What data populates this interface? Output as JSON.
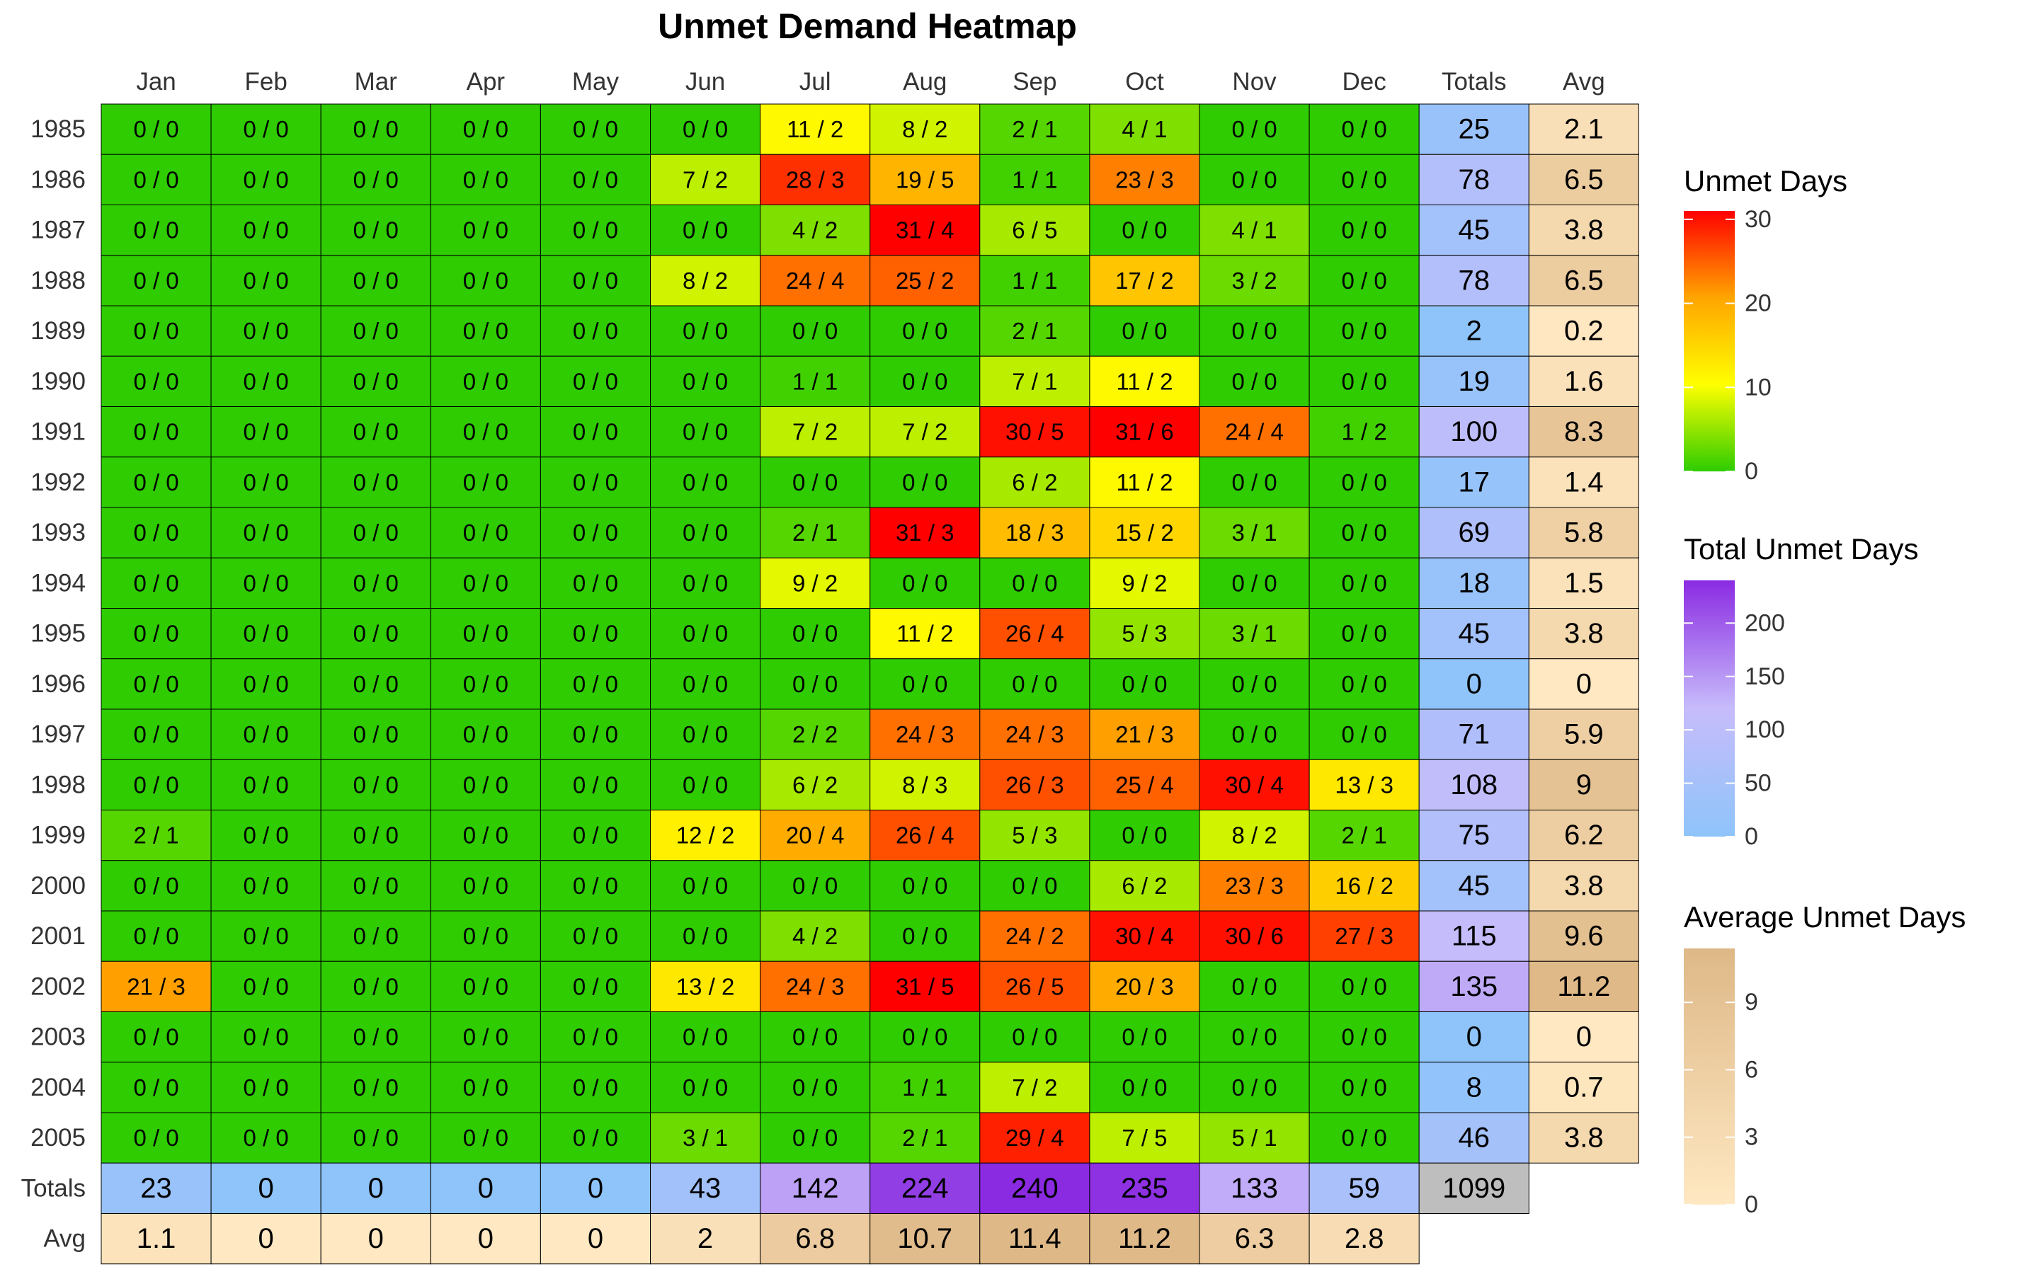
{
  "chart_data": {
    "type": "heatmap",
    "title": "Unmet Demand Heatmap",
    "columns": [
      "Jan",
      "Feb",
      "Mar",
      "Apr",
      "May",
      "Jun",
      "Jul",
      "Aug",
      "Sep",
      "Oct",
      "Nov",
      "Dec"
    ],
    "totals_label": "Totals",
    "avg_label": "Avg",
    "years": [
      "1985",
      "1986",
      "1987",
      "1988",
      "1989",
      "1990",
      "1991",
      "1992",
      "1993",
      "1994",
      "1995",
      "1996",
      "1997",
      "1998",
      "1999",
      "2000",
      "2001",
      "2002",
      "2003",
      "2004",
      "2005"
    ],
    "unmet_days": [
      [
        0,
        0,
        0,
        0,
        0,
        0,
        11,
        8,
        2,
        4,
        0,
        0
      ],
      [
        0,
        0,
        0,
        0,
        0,
        7,
        28,
        19,
        1,
        23,
        0,
        0
      ],
      [
        0,
        0,
        0,
        0,
        0,
        0,
        4,
        31,
        6,
        0,
        4,
        0
      ],
      [
        0,
        0,
        0,
        0,
        0,
        8,
        24,
        25,
        1,
        17,
        3,
        0
      ],
      [
        0,
        0,
        0,
        0,
        0,
        0,
        0,
        0,
        2,
        0,
        0,
        0
      ],
      [
        0,
        0,
        0,
        0,
        0,
        0,
        1,
        0,
        7,
        11,
        0,
        0
      ],
      [
        0,
        0,
        0,
        0,
        0,
        0,
        7,
        7,
        30,
        31,
        24,
        1
      ],
      [
        0,
        0,
        0,
        0,
        0,
        0,
        0,
        0,
        6,
        11,
        0,
        0
      ],
      [
        0,
        0,
        0,
        0,
        0,
        0,
        2,
        31,
        18,
        15,
        3,
        0
      ],
      [
        0,
        0,
        0,
        0,
        0,
        0,
        9,
        0,
        0,
        9,
        0,
        0
      ],
      [
        0,
        0,
        0,
        0,
        0,
        0,
        0,
        11,
        26,
        5,
        3,
        0
      ],
      [
        0,
        0,
        0,
        0,
        0,
        0,
        0,
        0,
        0,
        0,
        0,
        0
      ],
      [
        0,
        0,
        0,
        0,
        0,
        0,
        2,
        24,
        24,
        21,
        0,
        0
      ],
      [
        0,
        0,
        0,
        0,
        0,
        0,
        6,
        8,
        26,
        25,
        30,
        13
      ],
      [
        2,
        0,
        0,
        0,
        0,
        12,
        20,
        26,
        5,
        0,
        8,
        2
      ],
      [
        0,
        0,
        0,
        0,
        0,
        0,
        0,
        0,
        0,
        6,
        23,
        16
      ],
      [
        0,
        0,
        0,
        0,
        0,
        0,
        4,
        0,
        24,
        30,
        30,
        27
      ],
      [
        21,
        0,
        0,
        0,
        0,
        13,
        24,
        31,
        26,
        20,
        0,
        0
      ],
      [
        0,
        0,
        0,
        0,
        0,
        0,
        0,
        0,
        0,
        0,
        0,
        0
      ],
      [
        0,
        0,
        0,
        0,
        0,
        0,
        0,
        1,
        7,
        0,
        0,
        0
      ],
      [
        0,
        0,
        0,
        0,
        0,
        3,
        0,
        2,
        29,
        7,
        5,
        0
      ]
    ],
    "unmet_events": [
      [
        0,
        0,
        0,
        0,
        0,
        0,
        2,
        2,
        1,
        1,
        0,
        0
      ],
      [
        0,
        0,
        0,
        0,
        0,
        2,
        3,
        5,
        1,
        3,
        0,
        0
      ],
      [
        0,
        0,
        0,
        0,
        0,
        0,
        2,
        4,
        5,
        0,
        1,
        0
      ],
      [
        0,
        0,
        0,
        0,
        0,
        2,
        4,
        2,
        1,
        2,
        2,
        0
      ],
      [
        0,
        0,
        0,
        0,
        0,
        0,
        0,
        0,
        1,
        0,
        0,
        0
      ],
      [
        0,
        0,
        0,
        0,
        0,
        0,
        1,
        0,
        1,
        2,
        0,
        0
      ],
      [
        0,
        0,
        0,
        0,
        0,
        0,
        2,
        2,
        5,
        6,
        4,
        2
      ],
      [
        0,
        0,
        0,
        0,
        0,
        0,
        0,
        0,
        2,
        2,
        0,
        0
      ],
      [
        0,
        0,
        0,
        0,
        0,
        0,
        1,
        3,
        3,
        2,
        1,
        0
      ],
      [
        0,
        0,
        0,
        0,
        0,
        0,
        2,
        0,
        0,
        2,
        0,
        0
      ],
      [
        0,
        0,
        0,
        0,
        0,
        0,
        0,
        2,
        4,
        3,
        1,
        0
      ],
      [
        0,
        0,
        0,
        0,
        0,
        0,
        0,
        0,
        0,
        0,
        0,
        0
      ],
      [
        0,
        0,
        0,
        0,
        0,
        0,
        2,
        3,
        3,
        3,
        0,
        0
      ],
      [
        0,
        0,
        0,
        0,
        0,
        0,
        2,
        3,
        3,
        4,
        4,
        3
      ],
      [
        1,
        0,
        0,
        0,
        0,
        2,
        4,
        4,
        3,
        0,
        2,
        1
      ],
      [
        0,
        0,
        0,
        0,
        0,
        0,
        0,
        0,
        0,
        2,
        3,
        2
      ],
      [
        0,
        0,
        0,
        0,
        0,
        0,
        2,
        0,
        2,
        4,
        6,
        3
      ],
      [
        3,
        0,
        0,
        0,
        0,
        2,
        3,
        5,
        5,
        3,
        0,
        0
      ],
      [
        0,
        0,
        0,
        0,
        0,
        0,
        0,
        0,
        0,
        0,
        0,
        0
      ],
      [
        0,
        0,
        0,
        0,
        0,
        0,
        0,
        1,
        2,
        0,
        0,
        0
      ],
      [
        0,
        0,
        0,
        0,
        0,
        1,
        0,
        1,
        4,
        5,
        1,
        0
      ]
    ],
    "row_totals": [
      "25",
      "78",
      "45",
      "78",
      "2",
      "19",
      "100",
      "17",
      "69",
      "18",
      "45",
      "0",
      "71",
      "108",
      "75",
      "45",
      "115",
      "135",
      "0",
      "8",
      "46"
    ],
    "row_avgs": [
      "2.1",
      "6.5",
      "3.8",
      "6.5",
      "0.2",
      "1.6",
      "8.3",
      "1.4",
      "5.8",
      "1.5",
      "3.8",
      "0",
      "5.9",
      "9",
      "6.2",
      "3.8",
      "9.6",
      "11.2",
      "0",
      "0.7",
      "3.8"
    ],
    "col_totals": [
      "23",
      "0",
      "0",
      "0",
      "0",
      "43",
      "142",
      "224",
      "240",
      "235",
      "133",
      "59"
    ],
    "col_avgs": [
      "1.1",
      "0",
      "0",
      "0",
      "0",
      "2",
      "6.8",
      "10.7",
      "11.4",
      "11.2",
      "6.3",
      "2.8"
    ],
    "grand_total": "1099",
    "legends": [
      {
        "title": "Unmet Days",
        "min": 0,
        "max": 31,
        "ticks": [
          "0",
          "10",
          "20",
          "30"
        ],
        "colors": [
          "#2ecc00",
          "#ffff00",
          "#ffa500",
          "#ff0000"
        ]
      },
      {
        "title": "Total Unmet Days",
        "min": 0,
        "max": 240,
        "ticks": [
          "0",
          "50",
          "100",
          "150",
          "200"
        ],
        "colors": [
          "#8ec4fa",
          "#c7bcfb",
          "#8a2be2"
        ]
      },
      {
        "title": "Average Unmet Days",
        "min": 0,
        "max": 11.4,
        "ticks": [
          "0",
          "3",
          "6",
          "9"
        ],
        "colors": [
          "#ffe8c2",
          "#deb887"
        ]
      }
    ],
    "grand_total_color": "#bebebe"
  }
}
